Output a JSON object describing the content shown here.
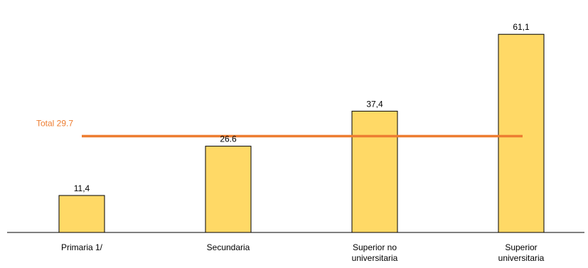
{
  "chart_data": {
    "type": "bar",
    "categories": [
      [
        "Primaria 1/"
      ],
      [
        "Secundaria"
      ],
      [
        "Superior no",
        "universitaria"
      ],
      [
        "Superior",
        "universitaria"
      ]
    ],
    "values": [
      11.4,
      26.6,
      37.4,
      61.1
    ],
    "value_labels": [
      "11,4",
      "26.6",
      "37,4",
      "61,1"
    ],
    "reference_line": {
      "label": "Total 29.7",
      "value": 29.7
    },
    "bar_color": "#FFD966",
    "reference_color": "#ED7D31",
    "ylim": [
      0,
      64
    ]
  }
}
